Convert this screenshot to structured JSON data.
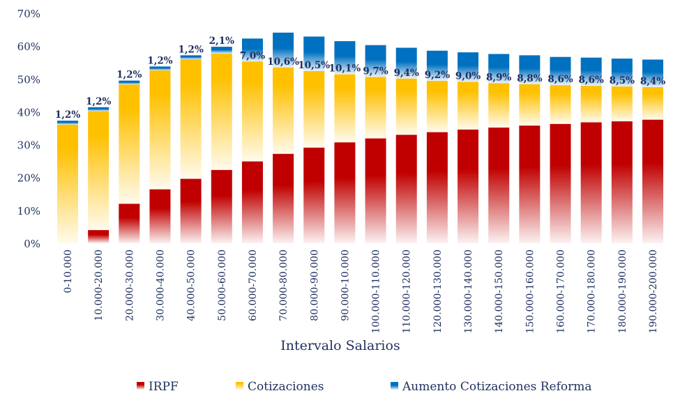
{
  "chart_data": {
    "type": "bar",
    "stacked": true,
    "xlabel": "Intervalo Salarios",
    "ylabel": "",
    "ylim": [
      0,
      70
    ],
    "yticks": [
      "0%",
      "10%",
      "20%",
      "30%",
      "40%",
      "50%",
      "60%",
      "70%"
    ],
    "grid": false,
    "legend": "bottom",
    "categories": [
      "0-10.000",
      "10.000-20.000",
      "20.000-30.000",
      "30.000-40.000",
      "40.000-50.000",
      "50.000-60.000",
      "60.000-70.000",
      "70.000-80.000",
      "80.000-90.000",
      "90.000-10.000",
      "100.000-110.000",
      "110.000-120.000",
      "120.000-130.000",
      "130.000-140.000",
      "140.000-150.000",
      "150.000-160.000",
      "160.000-170.000",
      "170.000-180.000",
      "180.000-190.000",
      "190.000-200.000"
    ],
    "series": [
      {
        "name": "IRPF",
        "color": "#c00000",
        "values": [
          0,
          4.0,
          12.0,
          16.4,
          19.6,
          22.3,
          24.9,
          27.2,
          29.1,
          30.7,
          31.9,
          33.0,
          33.8,
          34.6,
          35.2,
          35.8,
          36.3,
          36.8,
          37.1,
          37.6
        ]
      },
      {
        "name": "Cotizaciones",
        "color": "#ffc000",
        "values": [
          36.1,
          36.2,
          36.3,
          36.2,
          36.4,
          35.4,
          30.4,
          26.3,
          23.3,
          20.7,
          18.7,
          17.1,
          15.6,
          14.5,
          13.5,
          12.6,
          11.8,
          11.1,
          10.6,
          9.9
        ]
      },
      {
        "name": "Aumento Cotizaciones Reforma",
        "color": "#0070c0",
        "values": [
          1.2,
          1.2,
          1.2,
          1.2,
          1.2,
          2.1,
          7.0,
          10.6,
          10.5,
          10.1,
          9.7,
          9.4,
          9.2,
          9.0,
          8.9,
          8.8,
          8.6,
          8.6,
          8.5,
          8.4
        ]
      }
    ],
    "data_labels": [
      "1,2%",
      "1,2%",
      "1,2%",
      "1,2%",
      "1,2%",
      "2,1%",
      "7,0%",
      "10,6%",
      "10,5%",
      "10,1%",
      "9,7%",
      "9,4%",
      "9,2%",
      "9,0%",
      "8,9%",
      "8,8%",
      "8,6%",
      "8,6%",
      "8,5%",
      "8,4%"
    ]
  }
}
